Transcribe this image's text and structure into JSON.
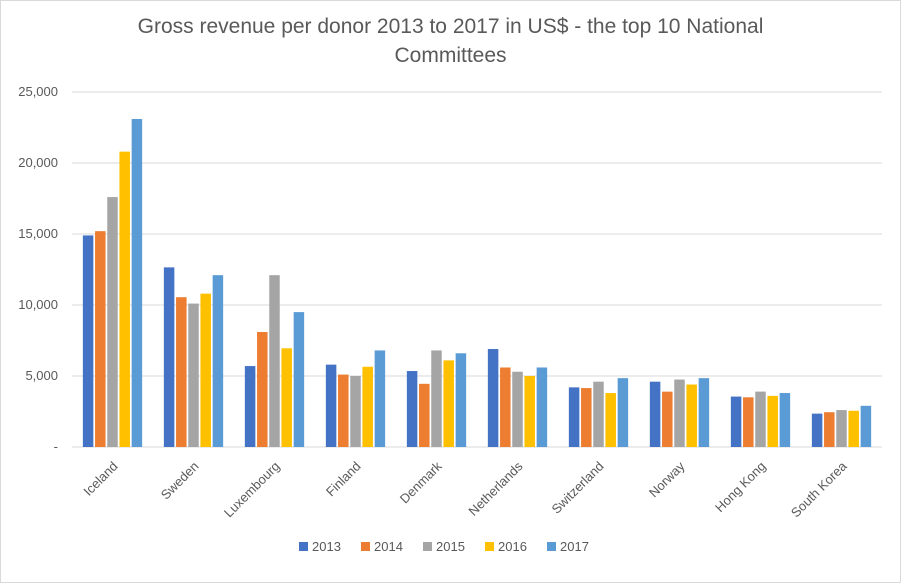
{
  "chart_data": {
    "type": "bar",
    "title_lines": [
      "Gross revenue per donor 2013 to 2017 in US$ - the top 10 National",
      "Committees"
    ],
    "xlabel": "",
    "ylabel": "",
    "ylim": [
      0,
      25000
    ],
    "yticks": [
      0,
      5000,
      10000,
      15000,
      20000,
      25000
    ],
    "ytick_labels": [
      "-",
      "5,000",
      "10,000",
      "15,000",
      "20,000",
      "25,000"
    ],
    "grid": true,
    "legend_position": "bottom",
    "categories": [
      "Iceland",
      "Sweden",
      "Luxembourg",
      "Finland",
      "Denmark",
      "Netherlands",
      "Switzerland",
      "Norway",
      "Hong Kong",
      "South Korea"
    ],
    "series": [
      {
        "name": "2013",
        "color": "#4472c4",
        "values": [
          14900,
          12650,
          5700,
          5800,
          5350,
          6900,
          4200,
          4600,
          3550,
          2350
        ]
      },
      {
        "name": "2014",
        "color": "#ed7d31",
        "values": [
          15200,
          10550,
          8100,
          5100,
          4450,
          5600,
          4150,
          3900,
          3500,
          2450
        ]
      },
      {
        "name": "2015",
        "color": "#a5a5a5",
        "values": [
          17600,
          10100,
          12100,
          5000,
          6800,
          5300,
          4600,
          4750,
          3900,
          2600
        ]
      },
      {
        "name": "2016",
        "color": "#ffc000",
        "values": [
          20800,
          10800,
          6950,
          5650,
          6100,
          5000,
          3800,
          4400,
          3600,
          2550
        ]
      },
      {
        "name": "2017",
        "color": "#5b9bd5",
        "values": [
          23100,
          12100,
          9500,
          6800,
          6600,
          5600,
          4850,
          4850,
          3800,
          2900
        ]
      }
    ]
  }
}
